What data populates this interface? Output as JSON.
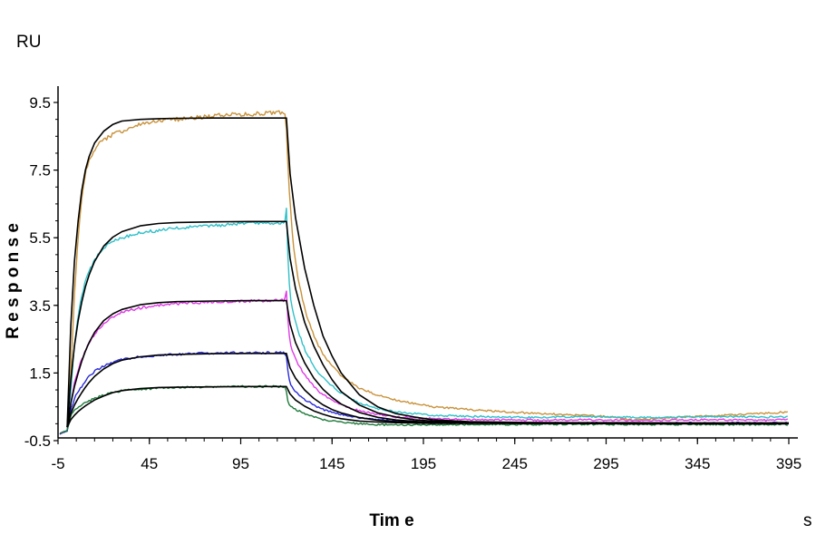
{
  "chart_data": {
    "type": "line",
    "title": "",
    "xlabel": "Tim e",
    "ylabel": "R e s p o n s e",
    "x_unit": "s",
    "y_unit": "RU",
    "xlim": [
      -5,
      400
    ],
    "ylim": [
      -0.5,
      9.8
    ],
    "x_ticks": [
      -5,
      45,
      95,
      145,
      195,
      245,
      295,
      345,
      395
    ],
    "x_tick_labels": [
      "-5",
      "45",
      "95",
      "145",
      "195",
      "245",
      "295",
      "345",
      "395"
    ],
    "y_ticks": [
      -0.5,
      1.5,
      3.5,
      5.5,
      7.5,
      9.5
    ],
    "y_tick_labels": [
      "-0.5",
      "1.5",
      "3.5",
      "5.5",
      "7.5",
      "9.5"
    ],
    "grid": false,
    "legend": "none",
    "colors": {
      "orange": "#c8923a",
      "cyan": "#2fc0c8",
      "magenta": "#e03ae6",
      "blue": "#2a2ad8",
      "green": "#1e7a3a",
      "fit": "#000000"
    },
    "series": [
      {
        "color": "orange",
        "x": [
          -4,
          0,
          2,
          4,
          6,
          8,
          10,
          12,
          14,
          16,
          20,
          25,
          30,
          35,
          40,
          50,
          60,
          70,
          80,
          90,
          100,
          110,
          119,
          120,
          121,
          122,
          124,
          126,
          130,
          135,
          140,
          150,
          160,
          170,
          180,
          190,
          200,
          220,
          240,
          260,
          280,
          300,
          310,
          320,
          340,
          360,
          380,
          395
        ],
        "y": [
          -0.3,
          -0.2,
          1.5,
          3.8,
          5.5,
          6.7,
          7.4,
          7.8,
          8.0,
          8.2,
          8.4,
          8.55,
          8.65,
          8.75,
          8.85,
          8.95,
          9.0,
          9.05,
          9.1,
          9.15,
          9.15,
          9.2,
          9.2,
          8.7,
          7.5,
          6.5,
          5.2,
          4.4,
          3.4,
          2.6,
          2.05,
          1.4,
          1.05,
          0.85,
          0.7,
          0.6,
          0.5,
          0.42,
          0.35,
          0.3,
          0.25,
          0.2,
          0.1,
          0.15,
          0.2,
          0.25,
          0.3,
          0.35
        ]
      },
      {
        "color": "cyan",
        "x": [
          -4,
          0,
          2,
          4,
          6,
          8,
          10,
          12,
          15,
          20,
          25,
          30,
          40,
          50,
          60,
          70,
          80,
          90,
          100,
          110,
          119,
          120,
          121,
          122,
          124,
          126,
          130,
          135,
          140,
          150,
          160,
          170,
          180,
          200,
          220,
          240,
          260,
          280,
          300,
          320,
          340,
          360,
          380,
          395
        ],
        "y": [
          -0.3,
          -0.2,
          1.0,
          2.3,
          3.2,
          3.8,
          4.2,
          4.5,
          4.85,
          5.2,
          5.4,
          5.5,
          5.65,
          5.72,
          5.78,
          5.82,
          5.86,
          5.9,
          5.92,
          5.94,
          5.95,
          6.4,
          4.6,
          3.8,
          3.2,
          2.8,
          2.2,
          1.7,
          1.35,
          0.9,
          0.6,
          0.45,
          0.35,
          0.25,
          0.22,
          0.2,
          0.18,
          0.22,
          0.2,
          0.18,
          0.2,
          0.22,
          0.2,
          0.2
        ]
      },
      {
        "color": "magenta",
        "x": [
          -4,
          0,
          2,
          4,
          6,
          8,
          10,
          12,
          15,
          20,
          25,
          30,
          40,
          50,
          60,
          70,
          80,
          90,
          100,
          110,
          119,
          120,
          121,
          122,
          124,
          126,
          130,
          135,
          140,
          150,
          160,
          170,
          180,
          200,
          220,
          240,
          260,
          280,
          300,
          320,
          340,
          360,
          380,
          395
        ],
        "y": [
          -0.3,
          -0.2,
          0.6,
          1.2,
          1.6,
          1.9,
          2.15,
          2.4,
          2.65,
          2.95,
          3.15,
          3.3,
          3.42,
          3.5,
          3.55,
          3.58,
          3.6,
          3.62,
          3.63,
          3.64,
          3.65,
          3.9,
          2.9,
          2.4,
          2.05,
          1.8,
          1.45,
          1.1,
          0.85,
          0.55,
          0.38,
          0.28,
          0.2,
          0.15,
          0.12,
          0.12,
          0.1,
          0.12,
          0.1,
          0.1,
          0.12,
          0.12,
          0.1,
          0.12
        ]
      },
      {
        "color": "blue",
        "x": [
          -4,
          0,
          2,
          4,
          6,
          8,
          10,
          12,
          15,
          20,
          25,
          30,
          40,
          50,
          60,
          70,
          80,
          90,
          100,
          110,
          119,
          120,
          121,
          122,
          124,
          126,
          130,
          135,
          140,
          150,
          160,
          170,
          180,
          200,
          220,
          240,
          260,
          280,
          300,
          320,
          340,
          360,
          380,
          395
        ],
        "y": [
          -0.3,
          -0.2,
          0.4,
          0.75,
          0.95,
          1.1,
          1.25,
          1.4,
          1.55,
          1.7,
          1.82,
          1.9,
          1.98,
          2.02,
          2.05,
          2.08,
          2.08,
          2.1,
          2.1,
          2.1,
          2.1,
          2.0,
          1.45,
          1.2,
          1.02,
          0.9,
          0.72,
          0.55,
          0.42,
          0.28,
          0.18,
          0.12,
          0.08,
          0.05,
          0.03,
          0.02,
          0.02,
          0.02,
          0.02,
          0.01,
          0.02,
          0.02,
          0.02,
          0.02
        ]
      },
      {
        "color": "green",
        "x": [
          -4,
          0,
          2,
          4,
          6,
          8,
          10,
          12,
          15,
          20,
          25,
          30,
          40,
          50,
          60,
          70,
          80,
          90,
          100,
          110,
          119,
          120,
          121,
          122,
          124,
          126,
          130,
          135,
          140,
          150,
          160,
          170,
          180,
          200,
          220,
          240,
          260,
          280,
          300,
          320,
          340,
          360,
          380,
          395
        ],
        "y": [
          -0.3,
          -0.2,
          0.25,
          0.42,
          0.5,
          0.55,
          0.62,
          0.68,
          0.75,
          0.85,
          0.92,
          0.98,
          1.02,
          1.05,
          1.07,
          1.08,
          1.09,
          1.1,
          1.1,
          1.1,
          1.1,
          0.95,
          0.62,
          0.5,
          0.45,
          0.4,
          0.3,
          0.2,
          0.12,
          0.05,
          0.0,
          -0.03,
          -0.03,
          -0.03,
          -0.02,
          -0.02,
          -0.02,
          -0.01,
          -0.02,
          -0.02,
          -0.02,
          -0.02,
          -0.02,
          -0.02
        ]
      },
      {
        "color": "fit",
        "x": [
          0,
          2,
          4,
          6,
          8,
          10,
          12,
          15,
          20,
          25,
          30,
          40,
          50,
          60,
          80,
          100,
          119,
          120,
          122,
          125,
          130,
          135,
          140,
          145,
          150,
          160,
          170,
          180,
          190,
          200,
          220,
          250,
          280,
          310,
          340,
          370,
          395
        ],
        "y": [
          -0.1,
          2.9,
          4.8,
          6.0,
          6.9,
          7.5,
          7.9,
          8.3,
          8.65,
          8.85,
          8.95,
          9.0,
          9.02,
          9.03,
          9.04,
          9.04,
          9.04,
          9.04,
          7.4,
          6.1,
          4.6,
          3.5,
          2.6,
          2.0,
          1.5,
          0.85,
          0.5,
          0.3,
          0.2,
          0.12,
          0.06,
          0.04,
          0.03,
          0.03,
          0.02,
          0.02,
          0.02
        ]
      },
      {
        "color": "fit",
        "x": [
          0,
          2,
          4,
          6,
          8,
          10,
          12,
          15,
          20,
          25,
          30,
          40,
          50,
          60,
          80,
          100,
          119,
          120,
          122,
          125,
          130,
          135,
          140,
          145,
          150,
          160,
          170,
          180,
          190,
          200,
          220,
          250,
          280,
          310,
          340,
          370,
          395
        ],
        "y": [
          -0.1,
          1.3,
          2.3,
          3.05,
          3.6,
          4.05,
          4.4,
          4.8,
          5.25,
          5.52,
          5.68,
          5.85,
          5.92,
          5.95,
          5.97,
          5.98,
          5.98,
          5.98,
          4.9,
          4.0,
          3.0,
          2.3,
          1.75,
          1.3,
          0.95,
          0.55,
          0.32,
          0.2,
          0.12,
          0.08,
          0.04,
          0.03,
          0.02,
          0.02,
          0.02,
          0.02,
          0.02
        ]
      },
      {
        "color": "fit",
        "x": [
          0,
          2,
          4,
          6,
          8,
          10,
          12,
          15,
          20,
          25,
          30,
          40,
          50,
          60,
          80,
          100,
          119,
          120,
          122,
          125,
          130,
          135,
          140,
          145,
          150,
          160,
          170,
          180,
          190,
          200,
          220,
          250,
          280,
          310,
          340,
          370,
          395
        ],
        "y": [
          -0.1,
          0.6,
          1.1,
          1.5,
          1.85,
          2.15,
          2.4,
          2.7,
          3.05,
          3.25,
          3.38,
          3.52,
          3.58,
          3.61,
          3.63,
          3.64,
          3.64,
          3.64,
          2.95,
          2.4,
          1.8,
          1.35,
          1.02,
          0.78,
          0.58,
          0.33,
          0.19,
          0.11,
          0.07,
          0.04,
          0.02,
          0.01,
          0.01,
          0.01,
          0.01,
          0.01,
          0.01
        ]
      },
      {
        "color": "fit",
        "x": [
          0,
          2,
          4,
          6,
          8,
          10,
          12,
          15,
          20,
          25,
          30,
          40,
          50,
          60,
          80,
          100,
          119,
          120,
          122,
          125,
          130,
          135,
          140,
          145,
          150,
          160,
          170,
          180,
          190,
          200,
          220,
          250,
          280,
          310,
          340,
          370,
          395
        ],
        "y": [
          -0.1,
          0.3,
          0.55,
          0.75,
          0.92,
          1.08,
          1.22,
          1.4,
          1.62,
          1.78,
          1.88,
          1.98,
          2.03,
          2.05,
          2.07,
          2.08,
          2.08,
          2.08,
          1.65,
          1.35,
          1.0,
          0.75,
          0.56,
          0.42,
          0.32,
          0.18,
          0.1,
          0.06,
          0.04,
          0.03,
          0.02,
          0.01,
          0.01,
          0.01,
          0.01,
          0.01,
          0.01
        ]
      },
      {
        "color": "fit",
        "x": [
          0,
          2,
          4,
          6,
          8,
          10,
          12,
          15,
          20,
          25,
          30,
          40,
          50,
          60,
          80,
          100,
          119,
          120,
          122,
          125,
          130,
          135,
          140,
          145,
          150,
          160,
          170,
          180,
          190,
          200,
          220,
          250,
          280,
          310,
          340,
          370,
          395
        ],
        "y": [
          -0.1,
          0.12,
          0.25,
          0.36,
          0.45,
          0.53,
          0.6,
          0.7,
          0.82,
          0.92,
          0.98,
          1.04,
          1.07,
          1.08,
          1.09,
          1.1,
          1.1,
          1.1,
          0.88,
          0.7,
          0.52,
          0.38,
          0.28,
          0.2,
          0.15,
          0.08,
          0.05,
          0.03,
          0.02,
          0.01,
          0.01,
          0.01,
          0.01,
          0.0,
          0.0,
          0.0,
          0.0
        ]
      }
    ]
  }
}
